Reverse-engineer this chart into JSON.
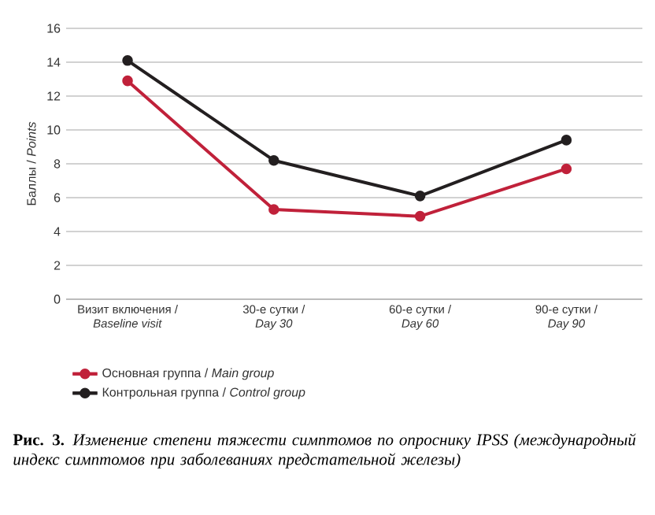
{
  "chart_data": {
    "type": "line",
    "categories": [
      "Визит включения / *Baseline visit*",
      "30-е сутки / *Day 30*",
      "60-е сутки / *Day 60*",
      "90-е сутки / *Day 90*"
    ],
    "series": [
      {
        "name": "Основная группа / *Main group*",
        "color": "#c0213a",
        "values": [
          12.9,
          5.3,
          4.9,
          7.7
        ]
      },
      {
        "name": "Контрольная группа / *Control group*",
        "color": "#231f20",
        "values": [
          14.1,
          8.2,
          6.1,
          9.4
        ]
      }
    ],
    "ylabel": "Баллы / *Points*",
    "ylim": [
      0,
      16
    ],
    "yticks": [
      0,
      2,
      4,
      6,
      8,
      10,
      12,
      14,
      16
    ],
    "grid": "y",
    "legend": "bottom left",
    "marker": "circle",
    "line_style": "solid",
    "annotations": [
      "**Рис. 3.** *Изменение степени тяжести симптомов по опроснику IPSS (международный индекс симптомов при заболеваниях предстательной железы)*"
    ]
  }
}
